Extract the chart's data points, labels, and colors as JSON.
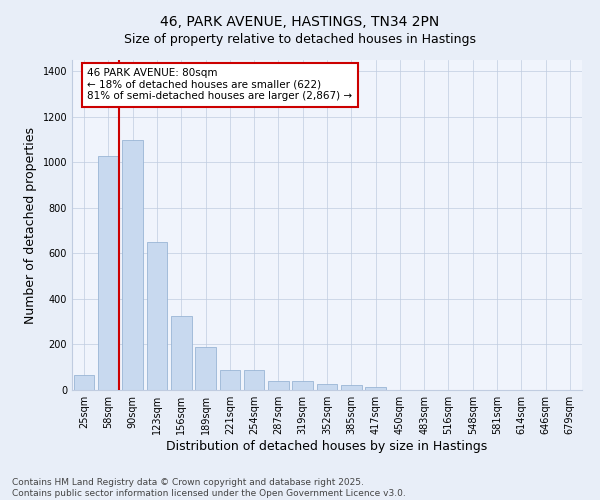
{
  "title": "46, PARK AVENUE, HASTINGS, TN34 2PN",
  "subtitle": "Size of property relative to detached houses in Hastings",
  "xlabel": "Distribution of detached houses by size in Hastings",
  "ylabel": "Number of detached properties",
  "categories": [
    "25sqm",
    "58sqm",
    "90sqm",
    "123sqm",
    "156sqm",
    "189sqm",
    "221sqm",
    "254sqm",
    "287sqm",
    "319sqm",
    "352sqm",
    "385sqm",
    "417sqm",
    "450sqm",
    "483sqm",
    "516sqm",
    "548sqm",
    "581sqm",
    "614sqm",
    "646sqm",
    "679sqm"
  ],
  "values": [
    65,
    1030,
    1100,
    650,
    325,
    190,
    90,
    90,
    40,
    40,
    25,
    20,
    15,
    0,
    0,
    0,
    0,
    0,
    0,
    0,
    0
  ],
  "bar_color": "#c8d9ef",
  "bar_edge_color": "#9ab5d5",
  "vline_x_idx": 1,
  "vline_color": "#cc0000",
  "annotation_text": "46 PARK AVENUE: 80sqm\n← 18% of detached houses are smaller (622)\n81% of semi-detached houses are larger (2,867) →",
  "annotation_box_color": "#ffffff",
  "annotation_box_edge": "#cc0000",
  "ylim": [
    0,
    1450
  ],
  "yticks": [
    0,
    200,
    400,
    600,
    800,
    1000,
    1200,
    1400
  ],
  "bg_color": "#e8eef8",
  "plot_bg_color": "#f0f4fc",
  "grid_color": "#c0cce0",
  "footer": "Contains HM Land Registry data © Crown copyright and database right 2025.\nContains public sector information licensed under the Open Government Licence v3.0.",
  "title_fontsize": 10,
  "axis_label_fontsize": 9,
  "tick_fontsize": 7,
  "annotation_fontsize": 7.5,
  "footer_fontsize": 6.5
}
